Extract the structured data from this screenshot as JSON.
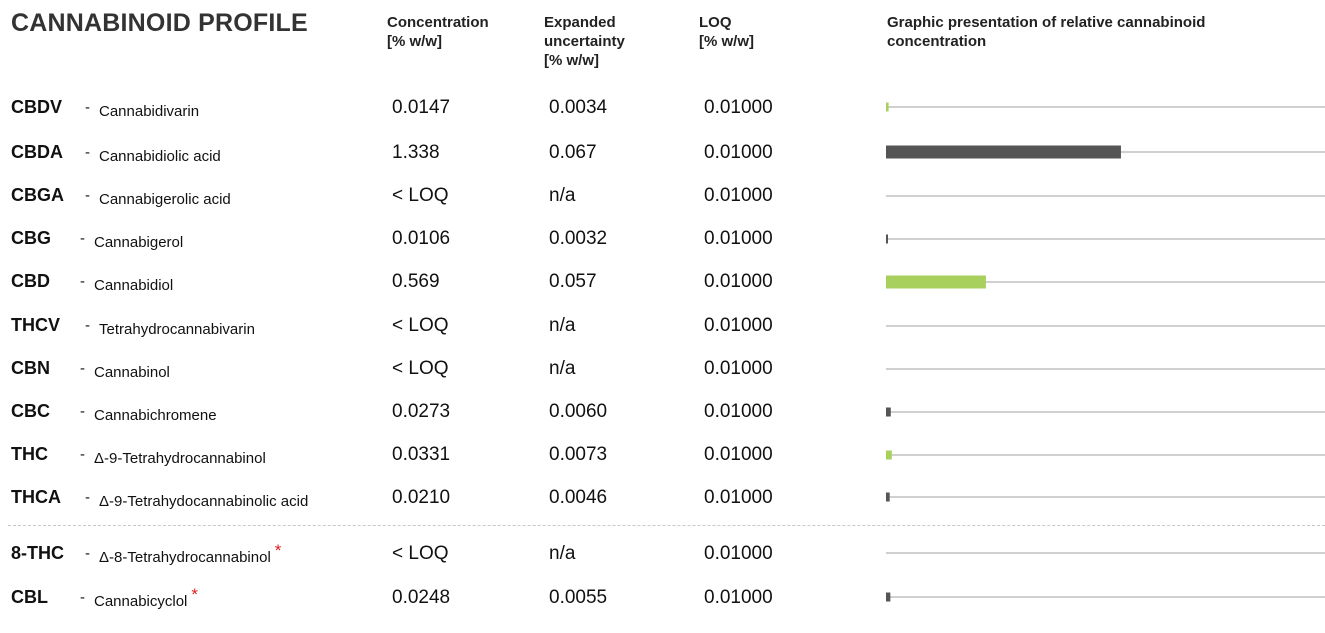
{
  "title": "CANNABINOID PROFILE",
  "headers": {
    "concentration": [
      "Concentration",
      "[% w/w]"
    ],
    "uncertainty": [
      "Expanded",
      "uncertainty",
      "[% w/w]"
    ],
    "loq": [
      "LOQ",
      "[% w/w]"
    ],
    "graphic": [
      "Graphic presentation of relative cannabinoid",
      "concentration"
    ]
  },
  "rows": [
    {
      "abbr": "CBDV",
      "name": "Cannabidivarin",
      "concentration": "0.0147",
      "uncertainty": "0.0034",
      "loq": "0.01000",
      "star": ""
    },
    {
      "abbr": "CBDA",
      "name": "Cannabidiolic acid",
      "concentration": "1.338",
      "uncertainty": "0.067",
      "loq": "0.01000",
      "star": ""
    },
    {
      "abbr": "CBGA",
      "name": "Cannabigerolic acid",
      "concentration": "< LOQ",
      "uncertainty": "n/a",
      "loq": "0.01000",
      "star": ""
    },
    {
      "abbr": "CBG",
      "name": "Cannabigerol",
      "concentration": "0.0106",
      "uncertainty": "0.0032",
      "loq": "0.01000",
      "star": ""
    },
    {
      "abbr": "CBD",
      "name": "Cannabidiol",
      "concentration": "0.569",
      "uncertainty": "0.057",
      "loq": "0.01000",
      "star": ""
    },
    {
      "abbr": "THCV",
      "name": "Tetrahydrocannabivarin",
      "concentration": "< LOQ",
      "uncertainty": "n/a",
      "loq": "0.01000",
      "star": ""
    },
    {
      "abbr": "CBN",
      "name": "Cannabinol",
      "concentration": "< LOQ",
      "uncertainty": "n/a",
      "loq": "0.01000",
      "star": ""
    },
    {
      "abbr": "CBC",
      "name": "Cannabichromene",
      "concentration": "0.0273",
      "uncertainty": "0.0060",
      "loq": "0.01000",
      "star": ""
    },
    {
      "abbr": "THC",
      "name": "Δ-9-Tetrahydrocannabinol",
      "concentration": "0.0331",
      "uncertainty": "0.0073",
      "loq": "0.01000",
      "star": ""
    },
    {
      "abbr": "THCA",
      "name": "Δ-9-Tetrahydocannabinolic acid",
      "concentration": "0.0210",
      "uncertainty": "0.0046",
      "loq": "0.01000",
      "star": ""
    },
    {
      "abbr": "8-THC",
      "name": "Δ-8-Tetrahydrocannabinol",
      "concentration": "< LOQ",
      "uncertainty": "n/a",
      "loq": "0.01000",
      "star": "*"
    },
    {
      "abbr": "CBL",
      "name": "Cannabicyclol",
      "concentration": "0.0248",
      "uncertainty": "0.0055",
      "loq": "0.01000",
      "star": "*"
    }
  ],
  "chart_data": {
    "type": "bar",
    "orientation": "horizontal",
    "categories": [
      "CBDV",
      "CBDA",
      "CBGA",
      "CBG",
      "CBD",
      "THCV",
      "CBN",
      "CBC",
      "THC",
      "THCA",
      "8-THC",
      "CBL"
    ],
    "values": [
      0.0147,
      1.338,
      0,
      0.0106,
      0.569,
      0,
      0,
      0.0273,
      0.0331,
      0.021,
      0,
      0.0248
    ],
    "bar_colors": [
      "#a7d15c",
      "#555555",
      "#555555",
      "#555555",
      "#a7d15c",
      "#555555",
      "#555555",
      "#555555",
      "#a7d15c",
      "#555555",
      "#555555",
      "#555555"
    ],
    "xlim": [
      0,
      2.5
    ],
    "title": "Graphic presentation of relative cannabinoid concentration"
  }
}
